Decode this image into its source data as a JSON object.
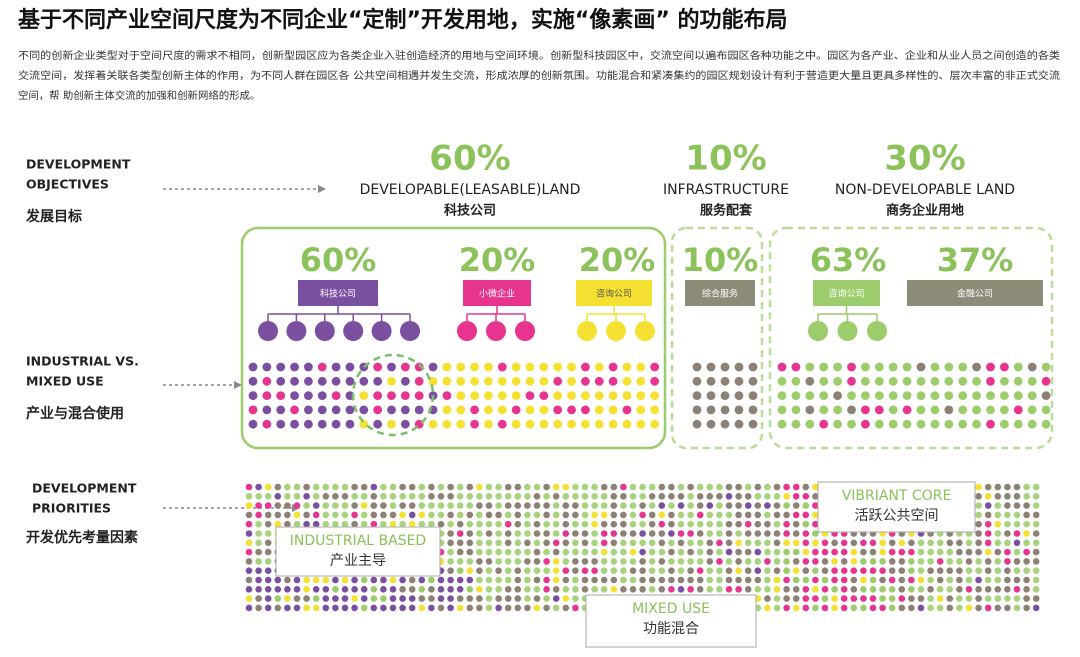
{
  "header": {
    "title": "基于不同产业空间尺度为不同企业“定制”开发用地，实施“像素画” 的功能布局",
    "paragraph_lines": [
      "不同的创新企业类型对于空间尺度的需求不相同，创新型园区应为各类企业入驻创造经济的用地与空间环境。创新型科技园区中，交流空间以遍布园区各种功能之中。园区为各产业、企业和从业人员之间创造的各类",
      "交流空间，发挥着关联各类型创新主体的作用，为不同人群在园区各 公共空间相遇并发生交流，形成浓厚的创新氛围。功能混合和紧凑集约的园区规划设计有利于营造更大量且更具多样性的、层次丰富的非正式交流",
      "空间，帮 助创新主体交流的加强和创新网络的形成。"
    ]
  },
  "rows": [
    {
      "label_en": [
        "DEVELOPMENT",
        "OBJECTIVES"
      ],
      "label_cn": "发展目标"
    },
    {
      "label_en": [
        "INDUSTRIAL VS.",
        "MIXED USE"
      ],
      "label_cn": "产业与混合使用"
    },
    {
      "label_en": [
        "DEVELOPMENT",
        "PRIORITIES"
      ],
      "label_cn": "开发优先考量因素"
    }
  ],
  "land_types": [
    {
      "percent": "60%",
      "name_en": "DEVELOPABLE(LEASABLE)LAND",
      "name_cn": "科技公司"
    },
    {
      "percent": "10%",
      "name_en": "INFRASTRUCTURE",
      "name_cn": "服务配套"
    },
    {
      "percent": "30%",
      "name_en": "NON-DEVELOPABLE LAND",
      "name_cn": "商务企业用地"
    }
  ],
  "tenants": [
    {
      "percent": "60%",
      "label": "科技公司"
    },
    {
      "percent": "20%",
      "label": "小微企业"
    },
    {
      "percent": "20%",
      "label": "咨询公司"
    },
    {
      "percent": "10%",
      "label": "综合服务"
    },
    {
      "percent": "63%",
      "label": "咨询公司"
    },
    {
      "percent": "37%",
      "label": "金融公司"
    }
  ],
  "priorities": [
    {
      "en": "INDUSTRIAL BASED",
      "cn": "产业主导"
    },
    {
      "en": "VIBRIANT CORE",
      "cn": "活跃公共空间"
    },
    {
      "en": "MIXED USE",
      "cn": "功能混合"
    }
  ]
}
